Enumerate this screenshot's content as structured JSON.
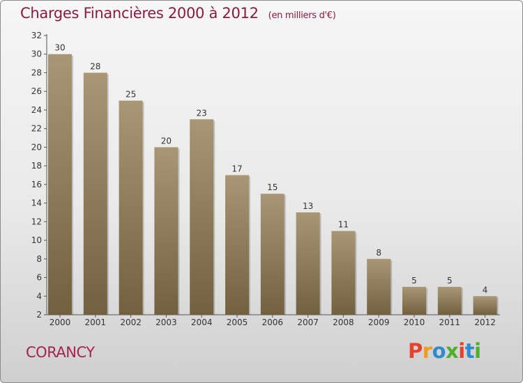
{
  "header": {
    "title": "Charges Financières 2000 à 2012",
    "subtitle": "(en milliers d'€)"
  },
  "footer": {
    "city": "CORANCY",
    "logo_text": "Proxiti",
    "logo_colors": [
      "#e2432a",
      "#f29a1e",
      "#2d8bd1",
      "#4caf2e",
      "#e2432a",
      "#2d8bd1",
      "#4caf2e"
    ]
  },
  "chart_data": {
    "type": "bar",
    "categories": [
      "2000",
      "2001",
      "2002",
      "2003",
      "2004",
      "2005",
      "2006",
      "2007",
      "2008",
      "2009",
      "2010",
      "2011",
      "2012"
    ],
    "values": [
      30,
      28,
      25,
      20,
      23,
      17,
      15,
      13,
      11,
      8,
      5,
      5,
      4
    ],
    "data_labels": [
      "30",
      "28",
      "25",
      "20",
      "23",
      "17",
      "15",
      "13",
      "11",
      "8",
      "5",
      "5",
      "4"
    ],
    "title": "Charges Financières 2000 à 2012",
    "xlabel": "",
    "ylabel": "",
    "ylim": [
      2,
      32
    ],
    "yticks": [
      2,
      4,
      6,
      8,
      10,
      12,
      14,
      16,
      18,
      20,
      22,
      24,
      26,
      28,
      30,
      32
    ],
    "grid": false,
    "legend": "none",
    "colors": {
      "bar_light": "#a89675",
      "bar_dark": "#72603f",
      "axis": "#555555",
      "text": "#333333"
    }
  }
}
